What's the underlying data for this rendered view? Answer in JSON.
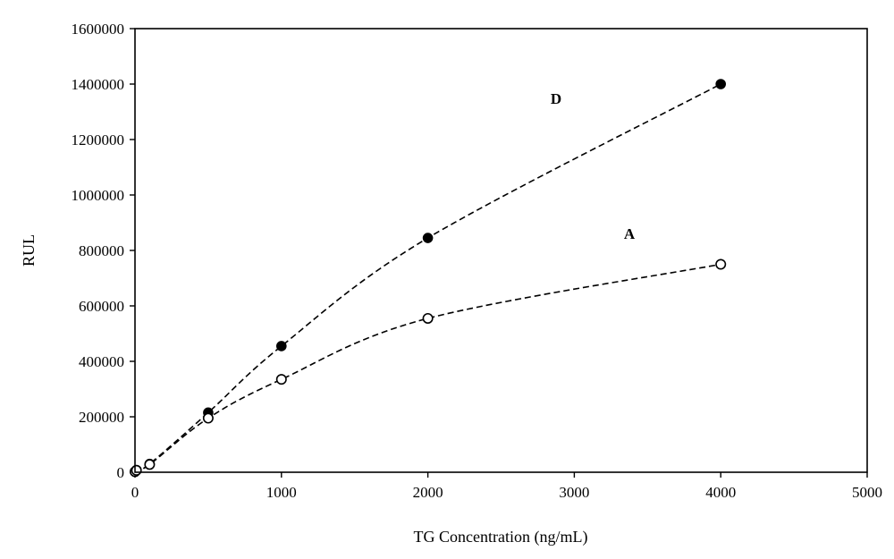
{
  "chart_data": {
    "type": "line",
    "title": "",
    "xlabel": "TG Concentration (ng/mL)",
    "ylabel": "RUL",
    "xlim": [
      0,
      5000
    ],
    "ylim": [
      0,
      1600000
    ],
    "x_ticks": [
      0,
      1000,
      2000,
      3000,
      4000,
      5000
    ],
    "y_ticks": [
      0,
      200000,
      400000,
      600000,
      800000,
      1000000,
      1200000,
      1400000,
      1600000
    ],
    "x_tick_labels": [
      "0",
      "1000",
      "2000",
      "3000",
      "4000",
      "5000"
    ],
    "y_tick_labels": [
      "0",
      "200000",
      "400000",
      "600000",
      "800000",
      "1000000",
      "1200000",
      "1400000",
      "1600000"
    ],
    "grid": false,
    "legend": "none",
    "series": [
      {
        "name": "D",
        "marker": "filled-circle",
        "line_style": "dashed",
        "color": "#000000",
        "x": [
          0,
          10,
          100,
          500,
          1000,
          2000,
          4000
        ],
        "y": [
          2000,
          8000,
          30000,
          215000,
          455000,
          845000,
          1400000
        ]
      },
      {
        "name": "A",
        "marker": "open-circle",
        "line_style": "dashed",
        "color": "#000000",
        "x": [
          0,
          10,
          100,
          500,
          1000,
          2000,
          4000
        ],
        "y": [
          2000,
          7000,
          28000,
          195000,
          335000,
          555000,
          750000
        ]
      }
    ],
    "annotations": [
      {
        "text": "D",
        "series": "D"
      },
      {
        "text": "A",
        "series": "A"
      }
    ]
  }
}
